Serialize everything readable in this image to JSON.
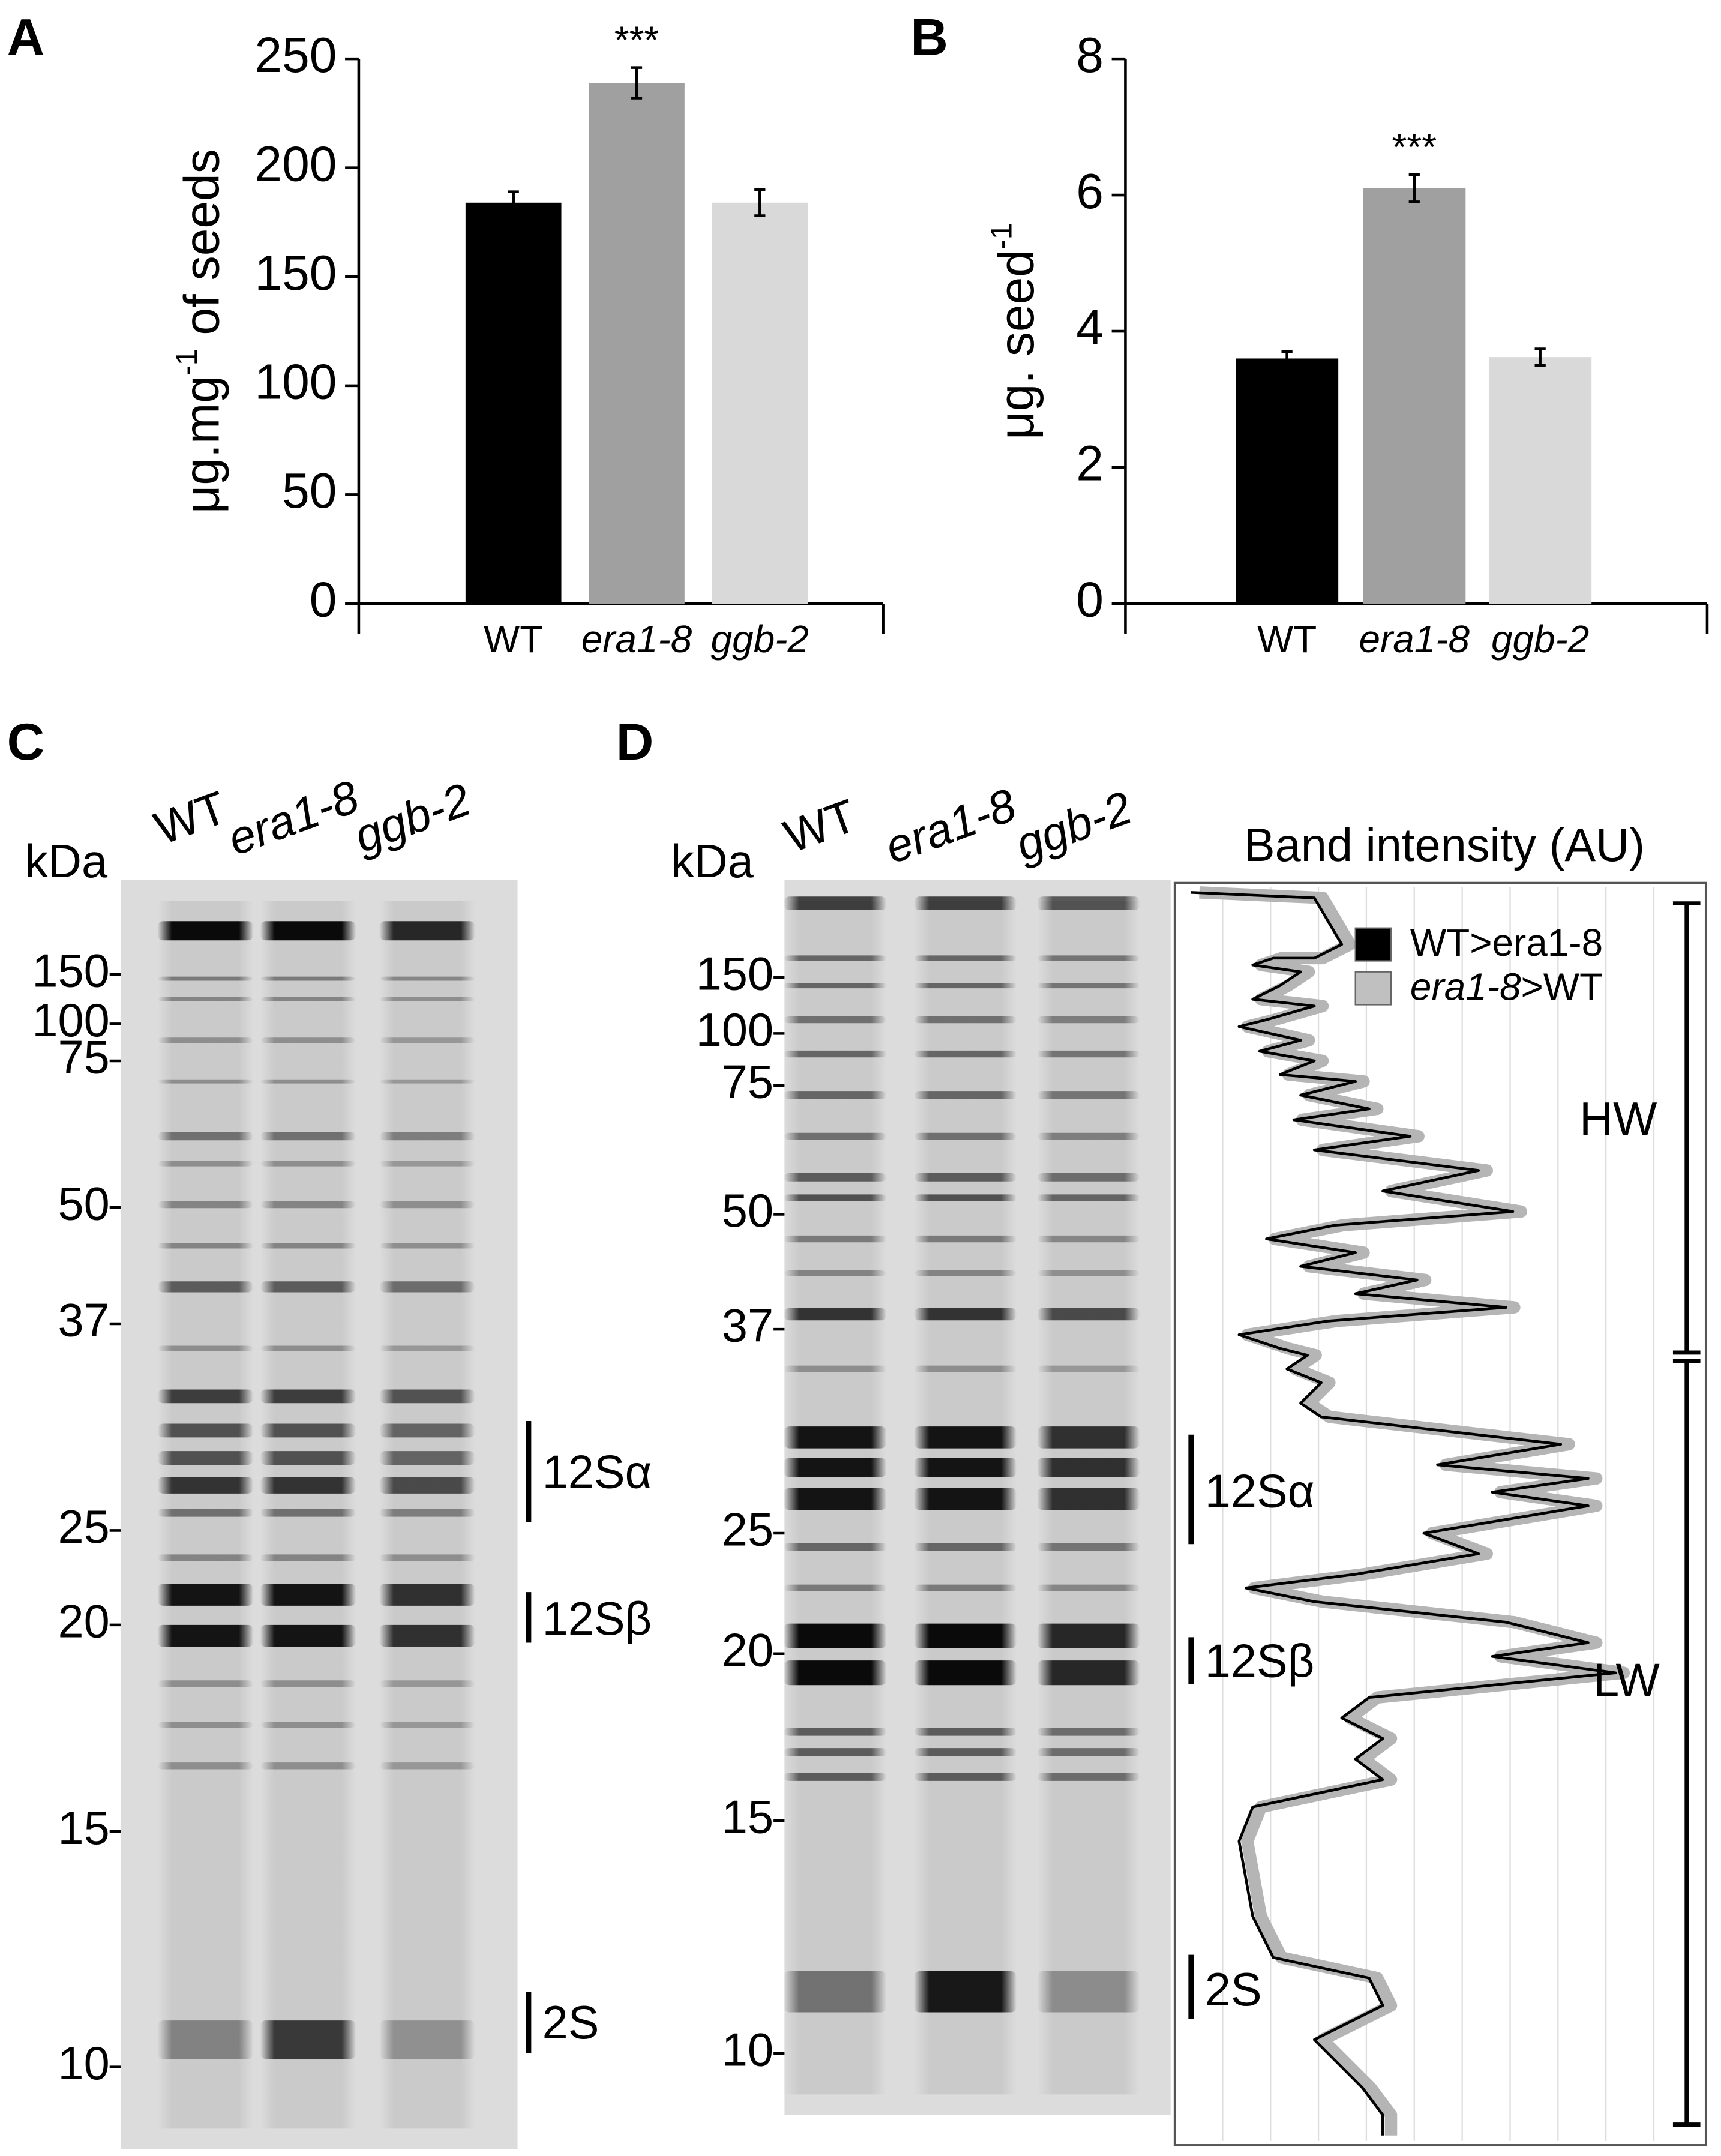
{
  "panel_labels": [
    "A",
    "B",
    "C",
    "D"
  ],
  "chart_data": [
    {
      "type": "bar",
      "y_label": [
        "μg.mg",
        "-1",
        " of seeds"
      ],
      "categories": [
        "WT",
        "era1-8",
        "ggb-2"
      ],
      "category_styles": [
        "normal",
        "italic",
        "italic"
      ],
      "values": [
        184,
        239,
        184
      ],
      "errors": [
        5,
        7,
        6
      ],
      "significance": [
        null,
        "***",
        null
      ],
      "colors": [
        "#000000",
        "#a0a0a0",
        "#d9d9d9"
      ],
      "ylim": [
        0,
        250
      ],
      "yticks": [
        0,
        50,
        100,
        150,
        200,
        250
      ]
    },
    {
      "type": "bar",
      "y_label": [
        "μg. seed",
        "-1",
        ""
      ],
      "categories": [
        "WT",
        "era1-8",
        "ggb-2"
      ],
      "category_styles": [
        "normal",
        "italic",
        "italic"
      ],
      "values": [
        3.6,
        6.1,
        3.62
      ],
      "errors": [
        0.1,
        0.2,
        0.12
      ],
      "significance": [
        null,
        "***",
        null
      ],
      "colors": [
        "#000000",
        "#a0a0a0",
        "#d9d9d9"
      ],
      "ylim": [
        0,
        8
      ],
      "yticks": [
        0,
        2,
        4,
        6,
        8
      ]
    }
  ],
  "gel_c": {
    "lanes": [
      "WT",
      "era1-8",
      "ggb-2"
    ],
    "unit": "kDa",
    "markers": [
      150,
      100,
      75,
      50,
      37,
      25,
      20,
      15,
      10
    ],
    "bands": [
      "12Sα",
      "12Sβ",
      "2S"
    ]
  },
  "gel_d": {
    "lanes": [
      "WT",
      "era1-8",
      "ggb-2"
    ],
    "unit": "kDa",
    "markers": [
      150,
      100,
      75,
      50,
      37,
      25,
      20,
      15,
      10
    ],
    "bands": [
      "12Sα",
      "12Sβ",
      "2S"
    ],
    "profile": {
      "title": "Band intensity (AU)",
      "legend": [
        [
          "WT>era1-8"
        ],
        [
          "era1-8",
          ">WT"
        ]
      ],
      "regions": [
        "HW",
        "LW"
      ]
    }
  }
}
